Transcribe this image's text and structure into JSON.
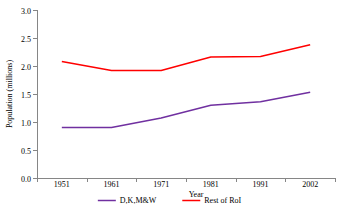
{
  "chart_data": {
    "type": "line",
    "x_label": "Year",
    "y_label": "Population (millions)",
    "categories": [
      "1951",
      "1961",
      "1971",
      "1981",
      "1991",
      "2002"
    ],
    "series": [
      {
        "name": "D,K,M&W",
        "color": "#7030a0",
        "values": [
          0.9,
          0.9,
          1.07,
          1.3,
          1.36,
          1.53
        ]
      },
      {
        "name": "Rest of RoI",
        "color": "#ff0000",
        "values": [
          2.08,
          1.92,
          1.92,
          2.16,
          2.17,
          2.38
        ]
      }
    ],
    "ylim": [
      0,
      3
    ],
    "yticks": [
      {
        "value": 0,
        "label": "0.0"
      },
      {
        "value": 0.5,
        "label": "0.5"
      },
      {
        "value": 1,
        "label": "1.0"
      },
      {
        "value": 1.5,
        "label": "1.5"
      },
      {
        "value": 2,
        "label": "2.0"
      },
      {
        "value": 2.5,
        "label": "2.5"
      },
      {
        "value": 3,
        "label": "3.0"
      }
    ],
    "grid": false,
    "legend": "bottom"
  }
}
